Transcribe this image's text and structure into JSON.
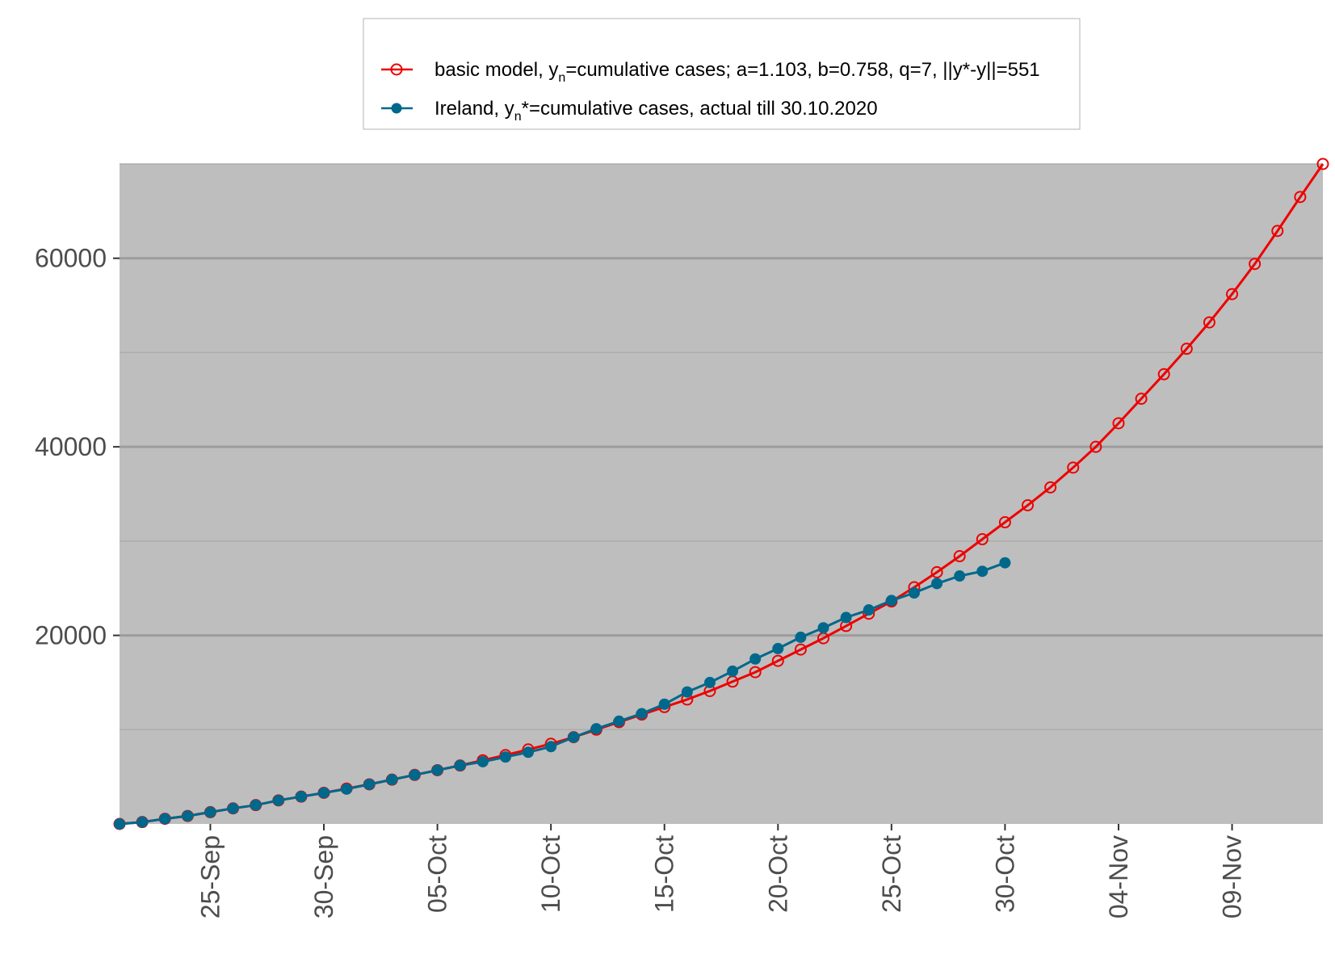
{
  "chart_data": {
    "type": "line",
    "title": "",
    "xlabel": "",
    "ylabel": "",
    "x_start_label": "21-Sep",
    "x_tick_labels": [
      "25-Sep",
      "30-Sep",
      "05-Oct",
      "10-Oct",
      "15-Oct",
      "20-Oct",
      "25-Oct",
      "30-Oct",
      "04-Nov",
      "09-Nov"
    ],
    "y_tick_labels": [
      "20000",
      "40000",
      "60000"
    ],
    "ylim": [
      0,
      70000
    ],
    "grid": true,
    "legend_position": "top",
    "legend": [
      {
        "prefix": "basic model,  y",
        "sub": "n",
        "suffix": "=cumulative cases; a=1.103, b=0.758, q=7, ||y*-y||=551"
      },
      {
        "prefix": "Ireland, y",
        "sub": "n",
        "suffix": "*=cumulative cases, actual till 30.10.2020"
      }
    ],
    "series": [
      {
        "x_start": "21-Sep",
        "color": "#ee0000",
        "marker": "open-circle",
        "values": [
          0,
          200,
          550,
          850,
          1250,
          1650,
          2000,
          2500,
          2900,
          3300,
          3750,
          4200,
          4700,
          5200,
          5700,
          6200,
          6750,
          7300,
          7900,
          8500,
          9200,
          10000,
          10800,
          11600,
          12400,
          13200,
          14100,
          15100,
          16100,
          17300,
          18500,
          19700,
          21000,
          22300,
          23600,
          25100,
          26700,
          28400,
          30200,
          32000,
          33800,
          35700,
          37800,
          40000,
          42500,
          45100,
          47700,
          50400,
          53200,
          56200,
          59400,
          62900,
          66500,
          70000
        ]
      },
      {
        "x_start": "21-Sep",
        "color": "#00688b",
        "marker": "filled-circle",
        "values": [
          0,
          200,
          550,
          850,
          1250,
          1650,
          2000,
          2500,
          2900,
          3300,
          3700,
          4200,
          4700,
          5200,
          5700,
          6200,
          6600,
          7100,
          7600,
          8200,
          9200,
          10100,
          10900,
          11700,
          12700,
          14000,
          15000,
          16200,
          17500,
          18600,
          19800,
          20800,
          21900,
          22700,
          23700,
          24500,
          25500,
          26300,
          26800,
          27700
        ]
      }
    ]
  }
}
